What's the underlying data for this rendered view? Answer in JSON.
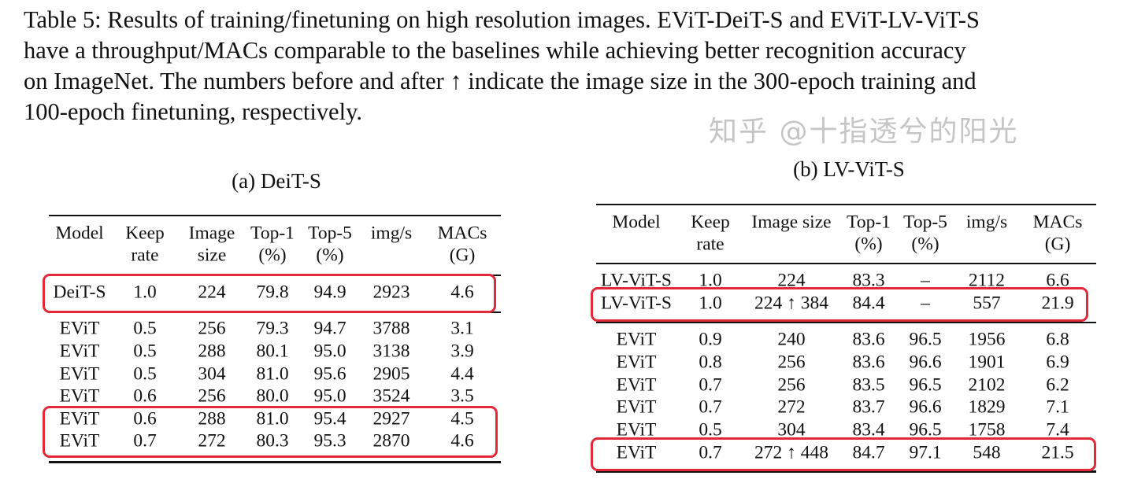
{
  "caption": [
    "Table 5: Results of training/finetuning on high resolution images. EViT-DeiT-S and EViT-LV-ViT-S",
    "have a throughput/MACs comparable to the baselines while achieving better recognition accuracy",
    "on ImageNet. The numbers before and after ↑ indicate the image size in the 300-epoch training and",
    "100-epoch finetuning, respectively."
  ],
  "highlight_color": "#e3283a",
  "watermark": "知乎 @十指透兮的阳光",
  "tables": [
    {
      "title": "(a) DeiT-S",
      "headers": [
        [
          "Model",
          ""
        ],
        [
          "Keep",
          "rate"
        ],
        [
          "Image",
          "size"
        ],
        [
          "Top-1",
          "(%)"
        ],
        [
          "Top-5",
          "(%)"
        ],
        [
          "img/s",
          ""
        ],
        [
          "MACs",
          "(G)"
        ]
      ],
      "rows": [
        [
          "DeiT-S",
          "1.0",
          "224",
          "79.8",
          "94.9",
          "2923",
          "4.6"
        ],
        [
          "EViT",
          "0.5",
          "256",
          "79.3",
          "94.7",
          "3788",
          "3.1"
        ],
        [
          "EViT",
          "0.5",
          "288",
          "80.1",
          "95.0",
          "3138",
          "3.9"
        ],
        [
          "EViT",
          "0.5",
          "304",
          "81.0",
          "95.6",
          "2905",
          "4.4"
        ],
        [
          "EViT",
          "0.6",
          "256",
          "80.0",
          "95.0",
          "3524",
          "3.5"
        ],
        [
          "EViT",
          "0.6",
          "288",
          "81.0",
          "95.4",
          "2927",
          "4.5"
        ],
        [
          "EViT",
          "0.7",
          "272",
          "80.3",
          "95.3",
          "2870",
          "4.6"
        ]
      ],
      "highlighted_rows": [
        0,
        5,
        6
      ]
    },
    {
      "title": "(b) LV-ViT-S",
      "headers": [
        [
          "Model",
          ""
        ],
        [
          "Keep",
          "rate"
        ],
        [
          "Image size",
          ""
        ],
        [
          "Top-1",
          "(%)"
        ],
        [
          "Top-5",
          "(%)"
        ],
        [
          "img/s",
          ""
        ],
        [
          "MACs",
          "(G)"
        ]
      ],
      "rows": [
        [
          "LV-ViT-S",
          "1.0",
          "224",
          "83.3",
          "–",
          "2112",
          "6.6"
        ],
        [
          "LV-ViT-S",
          "1.0",
          "224 ↑ 384",
          "84.4",
          "–",
          "557",
          "21.9"
        ],
        [
          "EViT",
          "0.9",
          "240",
          "83.6",
          "96.5",
          "1956",
          "6.8"
        ],
        [
          "EViT",
          "0.8",
          "256",
          "83.6",
          "96.6",
          "1901",
          "6.9"
        ],
        [
          "EViT",
          "0.7",
          "256",
          "83.5",
          "96.5",
          "2102",
          "6.2"
        ],
        [
          "EViT",
          "0.7",
          "272",
          "83.7",
          "96.6",
          "1829",
          "7.1"
        ],
        [
          "EViT",
          "0.5",
          "304",
          "83.4",
          "96.5",
          "1758",
          "7.4"
        ],
        [
          "EViT",
          "0.7",
          "272 ↑ 448",
          "84.7",
          "97.1",
          "548",
          "21.5"
        ]
      ],
      "highlighted_rows": [
        1,
        7
      ]
    }
  ]
}
